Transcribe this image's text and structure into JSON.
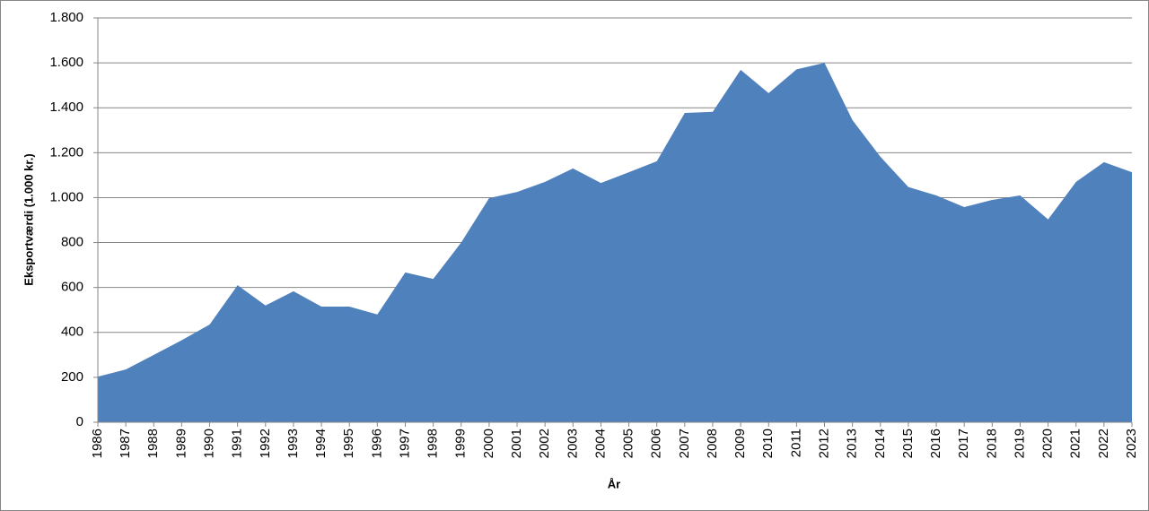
{
  "chart_data": {
    "type": "area",
    "x_label": "År",
    "y_label": "Eksportværdi (1.000 kr.)",
    "categories": [
      "1986",
      "1987",
      "1988",
      "1989",
      "1990",
      "1991",
      "1992",
      "1993",
      "1994",
      "1995",
      "1996",
      "1997",
      "1998",
      "1999",
      "2000",
      "2001",
      "2002",
      "2003",
      "2004",
      "2005",
      "2006",
      "2007",
      "2008",
      "2009",
      "2010",
      "2011",
      "2012",
      "2013",
      "2014",
      "2015",
      "2016",
      "2017",
      "2018",
      "2019",
      "2020",
      "2021",
      "2022",
      "2023"
    ],
    "values": [
      203,
      235,
      300,
      365,
      435,
      610,
      520,
      583,
      515,
      515,
      480,
      667,
      638,
      800,
      998,
      1025,
      1070,
      1130,
      1065,
      1113,
      1162,
      1377,
      1382,
      1569,
      1465,
      1571,
      1600,
      1345,
      1182,
      1047,
      1010,
      958,
      990,
      1010,
      903,
      1070,
      1158,
      1113
    ],
    "color": "#4f81bd",
    "ylim": [
      0,
      1800
    ],
    "yticks": [
      0,
      200,
      400,
      600,
      800,
      {
        "value": 1000,
        "label": "1.000"
      },
      {
        "value": 1200,
        "label": "1.200"
      },
      {
        "value": 1400,
        "label": "1.400"
      },
      {
        "value": 1600,
        "label": "1.600"
      },
      {
        "value": 1800,
        "label": "1.800"
      }
    ],
    "grid": true
  }
}
